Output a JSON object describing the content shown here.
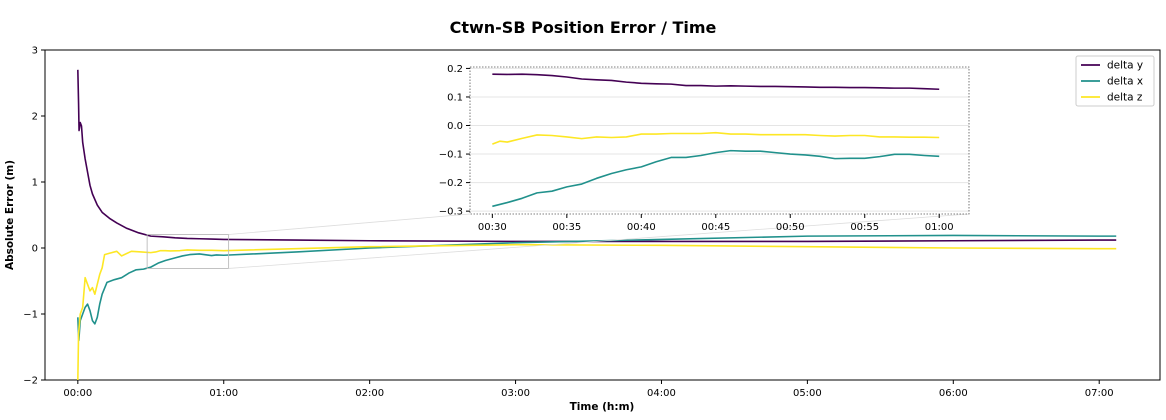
{
  "chart_data": {
    "type": "line",
    "title": "Ctwn-SB Position Error / Time",
    "xlabel": "Time (h:m)",
    "ylabel": "Absolute Error (m)",
    "x_unit": "minutes",
    "xlim": [
      -13.5,
      445
    ],
    "ylim": [
      -2,
      3
    ],
    "xticks": [
      0,
      60,
      120,
      180,
      240,
      300,
      360,
      420
    ],
    "xtick_labels": [
      "00:00",
      "01:00",
      "02:00",
      "03:00",
      "04:00",
      "05:00",
      "06:00",
      "07:00"
    ],
    "yticks": [
      -2,
      -1,
      0,
      1,
      2,
      3
    ],
    "ytick_labels": [
      "−2",
      "−1",
      "0",
      "1",
      "2",
      "3"
    ],
    "grid": false,
    "legend_position": "top-right",
    "series": [
      {
        "name": "delta y",
        "color": "#440154",
        "points": [
          [
            0,
            2.7
          ],
          [
            0.3,
            2.2
          ],
          [
            0.5,
            1.78
          ],
          [
            1,
            1.9
          ],
          [
            1.5,
            1.85
          ],
          [
            2,
            1.6
          ],
          [
            3,
            1.35
          ],
          [
            4,
            1.15
          ],
          [
            5,
            0.95
          ],
          [
            6,
            0.82
          ],
          [
            8,
            0.65
          ],
          [
            10,
            0.54
          ],
          [
            13,
            0.45
          ],
          [
            16,
            0.38
          ],
          [
            20,
            0.3
          ],
          [
            25,
            0.23
          ],
          [
            30,
            0.18
          ],
          [
            35,
            0.17
          ],
          [
            40,
            0.155
          ],
          [
            45,
            0.145
          ],
          [
            50,
            0.14
          ],
          [
            55,
            0.135
          ],
          [
            60,
            0.13
          ],
          [
            90,
            0.12
          ],
          [
            120,
            0.11
          ],
          [
            180,
            0.1
          ],
          [
            240,
            0.1
          ],
          [
            300,
            0.1
          ],
          [
            360,
            0.11
          ],
          [
            420,
            0.12
          ],
          [
            427,
            0.12
          ]
        ]
      },
      {
        "name": "delta x",
        "color": "#21918c",
        "points": [
          [
            0,
            -1.05
          ],
          [
            0.4,
            -1.4
          ],
          [
            1,
            -1.1
          ],
          [
            2,
            -1.0
          ],
          [
            3,
            -0.9
          ],
          [
            4,
            -0.85
          ],
          [
            5,
            -0.95
          ],
          [
            6,
            -1.1
          ],
          [
            7,
            -1.15
          ],
          [
            8,
            -1.05
          ],
          [
            9,
            -0.85
          ],
          [
            10,
            -0.7
          ],
          [
            12,
            -0.52
          ],
          [
            15,
            -0.48
          ],
          [
            18,
            -0.45
          ],
          [
            21,
            -0.38
          ],
          [
            24,
            -0.33
          ],
          [
            27,
            -0.32
          ],
          [
            29,
            -0.3
          ],
          [
            30,
            -0.29
          ],
          [
            33,
            -0.23
          ],
          [
            36,
            -0.19
          ],
          [
            40,
            -0.15
          ],
          [
            43,
            -0.12
          ],
          [
            46,
            -0.1
          ],
          [
            50,
            -0.09
          ],
          [
            55,
            -0.115
          ],
          [
            57,
            -0.105
          ],
          [
            60,
            -0.11
          ],
          [
            90,
            -0.06
          ],
          [
            120,
            0.0
          ],
          [
            180,
            0.08
          ],
          [
            240,
            0.13
          ],
          [
            300,
            0.18
          ],
          [
            360,
            0.19
          ],
          [
            420,
            0.18
          ],
          [
            427,
            0.18
          ]
        ]
      },
      {
        "name": "delta z",
        "color": "#fde725",
        "points": [
          [
            0,
            -2.0
          ],
          [
            0.3,
            -1.3
          ],
          [
            1,
            -1.0
          ],
          [
            2,
            -0.9
          ],
          [
            3,
            -0.45
          ],
          [
            4,
            -0.55
          ],
          [
            5,
            -0.65
          ],
          [
            6,
            -0.6
          ],
          [
            7,
            -0.7
          ],
          [
            8,
            -0.55
          ],
          [
            9,
            -0.4
          ],
          [
            10,
            -0.3
          ],
          [
            11,
            -0.1
          ],
          [
            13,
            -0.08
          ],
          [
            16,
            -0.05
          ],
          [
            18,
            -0.12
          ],
          [
            22,
            -0.05
          ],
          [
            26,
            -0.06
          ],
          [
            30,
            -0.07
          ],
          [
            32,
            -0.06
          ],
          [
            34,
            -0.04
          ],
          [
            36,
            -0.04
          ],
          [
            38,
            -0.045
          ],
          [
            42,
            -0.04
          ],
          [
            45,
            -0.03
          ],
          [
            50,
            -0.035
          ],
          [
            55,
            -0.035
          ],
          [
            60,
            -0.04
          ],
          [
            120,
            0.02
          ],
          [
            180,
            0.05
          ],
          [
            240,
            0.04
          ],
          [
            300,
            0.02
          ],
          [
            360,
            0.0
          ],
          [
            420,
            -0.01
          ],
          [
            427,
            -0.01
          ]
        ]
      }
    ],
    "inset": {
      "xlim": [
        28.5,
        62
      ],
      "ylim": [
        -0.31,
        0.205
      ],
      "xticks": [
        30,
        35,
        40,
        45,
        50,
        55,
        60
      ],
      "xtick_labels": [
        "00:30",
        "00:35",
        "00:40",
        "00:45",
        "00:50",
        "00:55",
        "01:00"
      ],
      "yticks": [
        0.2,
        0.1,
        0.0,
        -0.1,
        -0.2,
        -0.3
      ],
      "ytick_labels": [
        "0.2",
        "0.1",
        "0.0",
        "−0.1",
        "−0.2",
        "−0.3"
      ],
      "grid": true,
      "series": [
        {
          "name": "delta y",
          "color": "#440154",
          "points": [
            [
              30,
              0.18
            ],
            [
              31,
              0.179
            ],
            [
              32,
              0.18
            ],
            [
              33,
              0.178
            ],
            [
              34,
              0.175
            ],
            [
              35,
              0.17
            ],
            [
              36,
              0.163
            ],
            [
              37,
              0.16
            ],
            [
              38,
              0.158
            ],
            [
              39,
              0.152
            ],
            [
              40,
              0.148
            ],
            [
              41,
              0.146
            ],
            [
              42,
              0.145
            ],
            [
              43,
              0.14
            ],
            [
              44,
              0.14
            ],
            [
              45,
              0.138
            ],
            [
              46,
              0.139
            ],
            [
              47,
              0.138
            ],
            [
              48,
              0.137
            ],
            [
              49,
              0.137
            ],
            [
              50,
              0.136
            ],
            [
              51,
              0.135
            ],
            [
              52,
              0.134
            ],
            [
              53,
              0.134
            ],
            [
              54,
              0.133
            ],
            [
              55,
              0.133
            ],
            [
              56,
              0.132
            ],
            [
              57,
              0.131
            ],
            [
              58,
              0.131
            ],
            [
              59,
              0.129
            ],
            [
              60,
              0.127
            ]
          ]
        },
        {
          "name": "delta x",
          "color": "#21918c",
          "points": [
            [
              30,
              -0.283
            ],
            [
              31,
              -0.27
            ],
            [
              32,
              -0.255
            ],
            [
              33,
              -0.236
            ],
            [
              34,
              -0.23
            ],
            [
              35,
              -0.215
            ],
            [
              36,
              -0.205
            ],
            [
              37,
              -0.185
            ],
            [
              38,
              -0.168
            ],
            [
              39,
              -0.155
            ],
            [
              40,
              -0.145
            ],
            [
              41,
              -0.127
            ],
            [
              42,
              -0.112
            ],
            [
              43,
              -0.112
            ],
            [
              44,
              -0.105
            ],
            [
              45,
              -0.095
            ],
            [
              46,
              -0.088
            ],
            [
              47,
              -0.09
            ],
            [
              48,
              -0.09
            ],
            [
              49,
              -0.095
            ],
            [
              50,
              -0.1
            ],
            [
              51,
              -0.103
            ],
            [
              52,
              -0.108
            ],
            [
              53,
              -0.116
            ],
            [
              54,
              -0.115
            ],
            [
              55,
              -0.115
            ],
            [
              56,
              -0.109
            ],
            [
              57,
              -0.101
            ],
            [
              58,
              -0.101
            ],
            [
              59,
              -0.105
            ],
            [
              60,
              -0.108
            ]
          ]
        },
        {
          "name": "delta z",
          "color": "#fde725",
          "points": [
            [
              30,
              -0.065
            ],
            [
              30.5,
              -0.055
            ],
            [
              31,
              -0.058
            ],
            [
              32,
              -0.045
            ],
            [
              33,
              -0.033
            ],
            [
              34,
              -0.035
            ],
            [
              35,
              -0.04
            ],
            [
              36,
              -0.046
            ],
            [
              37,
              -0.04
            ],
            [
              38,
              -0.042
            ],
            [
              39,
              -0.04
            ],
            [
              40,
              -0.03
            ],
            [
              41,
              -0.03
            ],
            [
              42,
              -0.028
            ],
            [
              43,
              -0.028
            ],
            [
              44,
              -0.028
            ],
            [
              45,
              -0.025
            ],
            [
              46,
              -0.03
            ],
            [
              47,
              -0.03
            ],
            [
              48,
              -0.032
            ],
            [
              49,
              -0.032
            ],
            [
              50,
              -0.032
            ],
            [
              51,
              -0.032
            ],
            [
              52,
              -0.035
            ],
            [
              53,
              -0.037
            ],
            [
              54,
              -0.035
            ],
            [
              55,
              -0.035
            ],
            [
              56,
              -0.04
            ],
            [
              57,
              -0.04
            ],
            [
              58,
              -0.041
            ],
            [
              59,
              -0.041
            ],
            [
              60,
              -0.042
            ]
          ]
        }
      ]
    }
  }
}
